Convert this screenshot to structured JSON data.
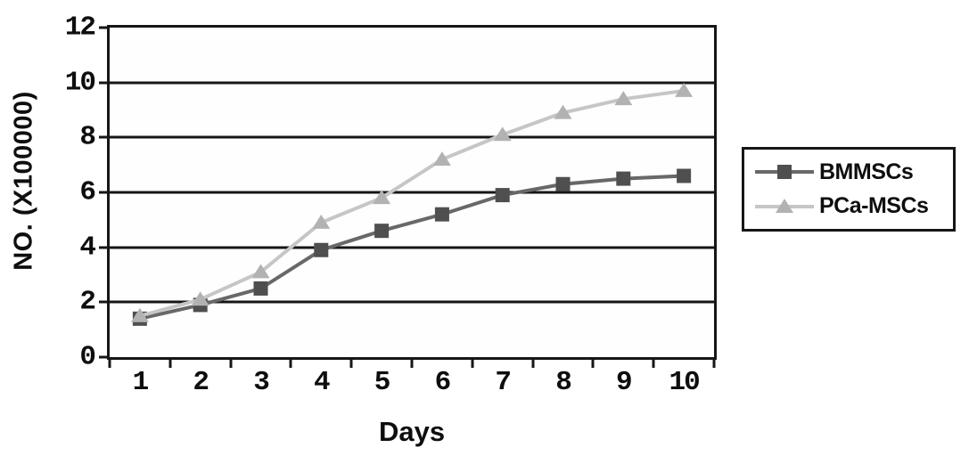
{
  "chart_data": {
    "type": "line",
    "title": "",
    "xlabel": "Days",
    "ylabel": "NO. (X100000)",
    "categories": [
      1,
      2,
      3,
      4,
      5,
      6,
      7,
      8,
      9,
      10
    ],
    "ylim": [
      0,
      12
    ],
    "yticks": [
      0,
      2,
      4,
      6,
      8,
      10,
      12
    ],
    "grid": "horizontal-black-lines",
    "legend_position": "right-outside-box",
    "series": [
      {
        "name": "BMMSCs",
        "marker": "square",
        "marker_color": "#4f4f4f",
        "line_color": "#686868",
        "values": [
          1.4,
          1.9,
          2.5,
          3.9,
          4.6,
          5.2,
          5.9,
          6.3,
          6.5,
          6.6
        ]
      },
      {
        "name": "PCa-MSCs",
        "marker": "triangle",
        "marker_color": "#b2b2b2",
        "line_color": "#c6c6c6",
        "values": [
          1.5,
          2.1,
          3.1,
          4.9,
          5.8,
          7.2,
          8.1,
          8.9,
          9.4,
          9.7
        ]
      }
    ],
    "axis_color": "#161616",
    "background": "#ffffff"
  }
}
